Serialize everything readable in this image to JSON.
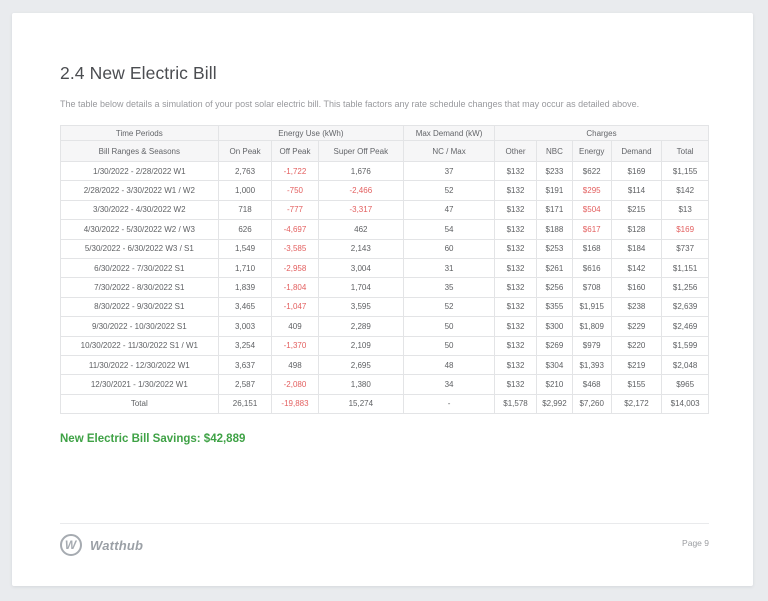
{
  "page": {
    "title": "2.4 New Electric Bill",
    "subtitle": "The table below details a simulation of your post solar electric bill. This table factors any rate schedule changes that may occur as detailed above.",
    "savings": "New Electric Bill Savings: $42,889",
    "brand": "Watthub",
    "brand_initial": "W",
    "page_number": "Page 9"
  },
  "colors": {
    "negative_value": "#e36060",
    "savings_green": "#3fa246",
    "header_bg": "#f6f6f7",
    "border": "#e3e4e6"
  },
  "table": {
    "group_headers": [
      {
        "label": "Time Periods",
        "colspan": 1
      },
      {
        "label": "Energy Use (kWh)",
        "colspan": 3
      },
      {
        "label": "Max Demand (kW)",
        "colspan": 1
      },
      {
        "label": "Charges",
        "colspan": 5
      }
    ],
    "columns": [
      "Bill Ranges & Seasons",
      "On Peak",
      "Off Peak",
      "Super Off Peak",
      "NC / Max",
      "Other",
      "NBC",
      "Energy",
      "Demand",
      "Total"
    ],
    "rows": [
      {
        "cells": [
          "1/30/2022 - 2/28/2022 W1",
          "2,763",
          "-1,722",
          "1,676",
          "37",
          "$132",
          "$233",
          "$622",
          "$169",
          "$1,155"
        ],
        "red": [
          2
        ]
      },
      {
        "cells": [
          "2/28/2022 - 3/30/2022 W1 / W2",
          "1,000",
          "-750",
          "-2,466",
          "52",
          "$132",
          "$191",
          "$295",
          "$114",
          "$142"
        ],
        "red": [
          2,
          3,
          7
        ]
      },
      {
        "cells": [
          "3/30/2022 - 4/30/2022 W2",
          "718",
          "-777",
          "-3,317",
          "47",
          "$132",
          "$171",
          "$504",
          "$215",
          "$13"
        ],
        "red": [
          2,
          3,
          7
        ]
      },
      {
        "cells": [
          "4/30/2022 - 5/30/2022 W2 / W3",
          "626",
          "-4,697",
          "462",
          "54",
          "$132",
          "$188",
          "$617",
          "$128",
          "$169"
        ],
        "red": [
          2,
          7,
          9
        ]
      },
      {
        "cells": [
          "5/30/2022 - 6/30/2022 W3 / S1",
          "1,549",
          "-3,585",
          "2,143",
          "60",
          "$132",
          "$253",
          "$168",
          "$184",
          "$737"
        ],
        "red": [
          2
        ]
      },
      {
        "cells": [
          "6/30/2022 - 7/30/2022 S1",
          "1,710",
          "-2,958",
          "3,004",
          "31",
          "$132",
          "$261",
          "$616",
          "$142",
          "$1,151"
        ],
        "red": [
          2
        ]
      },
      {
        "cells": [
          "7/30/2022 - 8/30/2022 S1",
          "1,839",
          "-1,804",
          "1,704",
          "35",
          "$132",
          "$256",
          "$708",
          "$160",
          "$1,256"
        ],
        "red": [
          2
        ]
      },
      {
        "cells": [
          "8/30/2022 - 9/30/2022 S1",
          "3,465",
          "-1,047",
          "3,595",
          "52",
          "$132",
          "$355",
          "$1,915",
          "$238",
          "$2,639"
        ],
        "red": [
          2
        ]
      },
      {
        "cells": [
          "9/30/2022 - 10/30/2022 S1",
          "3,003",
          "409",
          "2,289",
          "50",
          "$132",
          "$300",
          "$1,809",
          "$229",
          "$2,469"
        ],
        "red": []
      },
      {
        "cells": [
          "10/30/2022 - 11/30/2022 S1 / W1",
          "3,254",
          "-1,370",
          "2,109",
          "50",
          "$132",
          "$269",
          "$979",
          "$220",
          "$1,599"
        ],
        "red": [
          2
        ]
      },
      {
        "cells": [
          "11/30/2022 - 12/30/2022 W1",
          "3,637",
          "498",
          "2,695",
          "48",
          "$132",
          "$304",
          "$1,393",
          "$219",
          "$2,048"
        ],
        "red": []
      },
      {
        "cells": [
          "12/30/2021 - 1/30/2022 W1",
          "2,587",
          "-2,080",
          "1,380",
          "34",
          "$132",
          "$210",
          "$468",
          "$155",
          "$965"
        ],
        "red": [
          2
        ]
      }
    ],
    "total_row": {
      "cells": [
        "Total",
        "26,151",
        "-19,883",
        "15,274",
        "-",
        "$1,578",
        "$2,992",
        "$7,260",
        "$2,172",
        "$14,003"
      ],
      "red": [
        2
      ]
    }
  }
}
